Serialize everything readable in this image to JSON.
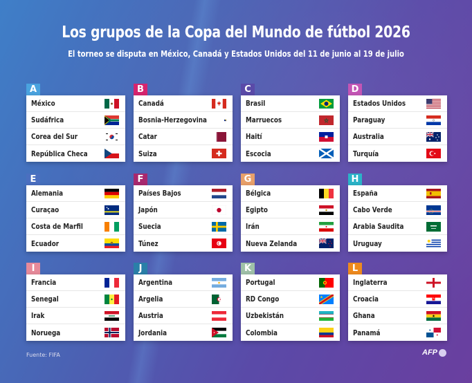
{
  "header": {
    "title": "Los grupos de la Copa del Mundo de fútbol 2026",
    "subtitle": "El torneo se disputa en México, Canadá y Estados Unidos del 11 de junio al 19 de julio"
  },
  "groups": [
    {
      "letter": "A",
      "color": "#4aa3df",
      "teams": [
        {
          "name": "México",
          "flag": "mexico-flag"
        },
        {
          "name": "Sudáfrica",
          "flag": "south-africa-flag"
        },
        {
          "name": "Corea del Sur",
          "flag": "south-korea-flag"
        },
        {
          "name": "República Checa",
          "flag": "czech-republic-flag"
        }
      ]
    },
    {
      "letter": "B",
      "color": "#d6246e",
      "teams": [
        {
          "name": "Canadá",
          "flag": "canada-flag"
        },
        {
          "name": "Bosnia-Herzegovina",
          "flag": "bosnia-flag"
        },
        {
          "name": "Catar",
          "flag": "qatar-flag"
        },
        {
          "name": "Suiza",
          "flag": "switzerland-flag"
        }
      ]
    },
    {
      "letter": "C",
      "color": "#5a4aa8",
      "teams": [
        {
          "name": "Brasil",
          "flag": "brazil-flag"
        },
        {
          "name": "Marruecos",
          "flag": "morocco-flag"
        },
        {
          "name": "Haití",
          "flag": "haiti-flag"
        },
        {
          "name": "Escocia",
          "flag": "scotland-flag"
        }
      ]
    },
    {
      "letter": "D",
      "color": "#c455b5",
      "teams": [
        {
          "name": "Estados Unidos",
          "flag": "usa-flag"
        },
        {
          "name": "Paraguay",
          "flag": "paraguay-flag"
        },
        {
          "name": "Australia",
          "flag": "australia-flag"
        },
        {
          "name": "Turquía",
          "flag": "turkey-flag"
        }
      ]
    },
    {
      "letter": "E",
      "color": "#4b6fc0",
      "teams": [
        {
          "name": "Alemania",
          "flag": "germany-flag"
        },
        {
          "name": "Curaçao",
          "flag": "curacao-flag"
        },
        {
          "name": "Costa de Marfil",
          "flag": "ivory-coast-flag"
        },
        {
          "name": "Ecuador",
          "flag": "ecuador-flag"
        }
      ]
    },
    {
      "letter": "F",
      "color": "#a8286e",
      "teams": [
        {
          "name": "Países Bajos",
          "flag": "netherlands-flag"
        },
        {
          "name": "Japón",
          "flag": "japan-flag"
        },
        {
          "name": "Suecia",
          "flag": "sweden-flag"
        },
        {
          "name": "Túnez",
          "flag": "tunisia-flag"
        }
      ]
    },
    {
      "letter": "G",
      "color": "#e8a06a",
      "teams": [
        {
          "name": "Bélgica",
          "flag": "belgium-flag"
        },
        {
          "name": "Egipto",
          "flag": "egypt-flag"
        },
        {
          "name": "Irán",
          "flag": "iran-flag"
        },
        {
          "name": "Nueva Zelanda",
          "flag": "new-zealand-flag"
        }
      ]
    },
    {
      "letter": "H",
      "color": "#2bb3c8",
      "teams": [
        {
          "name": "España",
          "flag": "spain-flag"
        },
        {
          "name": "Cabo Verde",
          "flag": "cape-verde-flag"
        },
        {
          "name": "Arabia Saudita",
          "flag": "saudi-arabia-flag"
        },
        {
          "name": "Uruguay",
          "flag": "uruguay-flag"
        }
      ]
    },
    {
      "letter": "I",
      "color": "#e68a9a",
      "teams": [
        {
          "name": "Francia",
          "flag": "france-flag"
        },
        {
          "name": "Senegal",
          "flag": "senegal-flag"
        },
        {
          "name": "Irak",
          "flag": "iraq-flag"
        },
        {
          "name": "Noruega",
          "flag": "norway-flag"
        }
      ]
    },
    {
      "letter": "J",
      "color": "#2a7fa8",
      "teams": [
        {
          "name": "Argentina",
          "flag": "argentina-flag"
        },
        {
          "name": "Argelia",
          "flag": "algeria-flag"
        },
        {
          "name": "Austria",
          "flag": "austria-flag"
        },
        {
          "name": "Jordania",
          "flag": "jordan-flag"
        }
      ]
    },
    {
      "letter": "K",
      "color": "#9fc0a8",
      "teams": [
        {
          "name": "Portugal",
          "flag": "portugal-flag"
        },
        {
          "name": "RD Congo",
          "flag": "dr-congo-flag"
        },
        {
          "name": "Uzbekistán",
          "flag": "uzbekistan-flag"
        },
        {
          "name": "Colombia",
          "flag": "colombia-flag"
        }
      ]
    },
    {
      "letter": "L",
      "color": "#ee8a1e",
      "teams": [
        {
          "name": "Inglaterra",
          "flag": "england-flag"
        },
        {
          "name": "Croacia",
          "flag": "croatia-flag"
        },
        {
          "name": "Ghana",
          "flag": "ghana-flag"
        },
        {
          "name": "Panamá",
          "flag": "panama-flag"
        }
      ]
    }
  ],
  "footer": {
    "source": "Fuente: FIFA",
    "credit": "AFP"
  }
}
